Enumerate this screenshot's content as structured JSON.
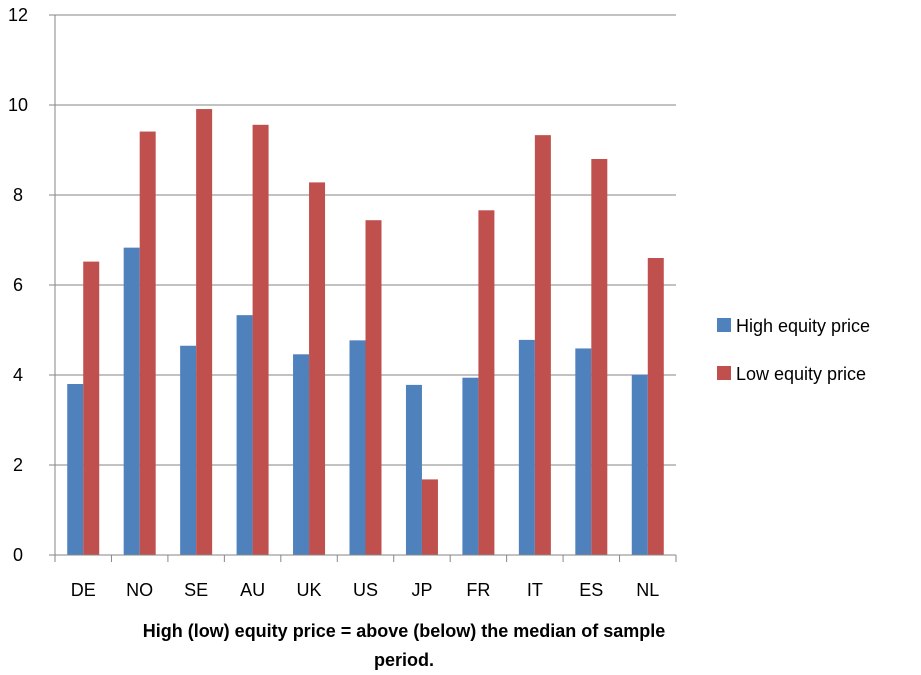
{
  "chart_data": {
    "type": "bar",
    "title": "",
    "xlabel": "High (low) equity price = above (below) the median of sample period.",
    "xlabel_lines": [
      "High (low) equity price = above (below) the median of sample",
      "period."
    ],
    "ylabel": "",
    "ylim": [
      0,
      12
    ],
    "yticks": [
      "0",
      "2",
      "4",
      "6",
      "8",
      "10",
      "12"
    ],
    "grid": true,
    "legend_position": "right",
    "categories": [
      "DE",
      "NO",
      "SE",
      "AU",
      "UK",
      "US",
      "JP",
      "FR",
      "IT",
      "ES",
      "NL"
    ],
    "series": [
      {
        "name": "High equity price",
        "color": "#4F81BD",
        "values": [
          3.8,
          6.83,
          4.65,
          5.33,
          4.46,
          4.77,
          3.78,
          3.94,
          4.78,
          4.59,
          4.01
        ]
      },
      {
        "name": "Low equity price",
        "color": "#C0504D",
        "values": [
          6.52,
          9.41,
          9.91,
          9.56,
          8.28,
          7.44,
          1.68,
          7.66,
          9.33,
          8.8,
          6.6
        ]
      }
    ]
  }
}
